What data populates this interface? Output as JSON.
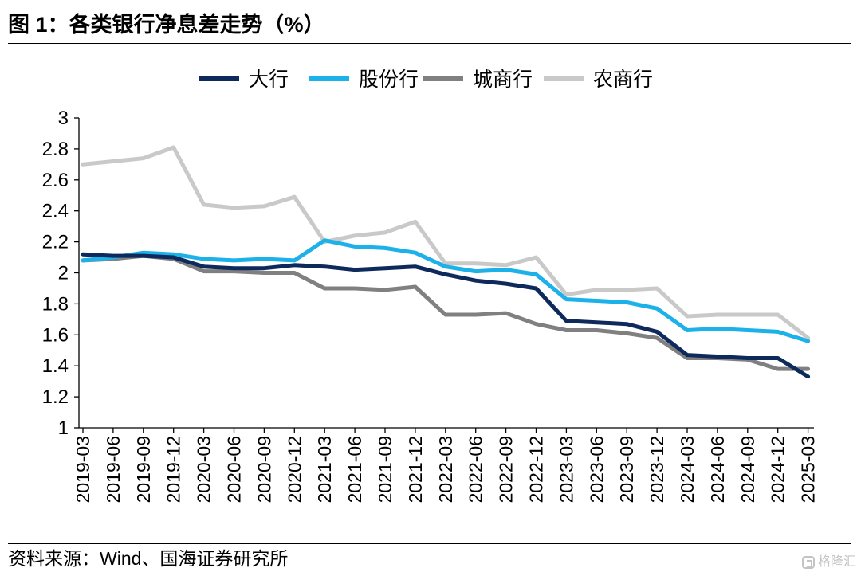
{
  "source": "资料来源：Wind、国海证券研究所",
  "watermark": "格隆汇",
  "chart_data": {
    "type": "line",
    "title": "图 1：各类银行净息差走势（%）",
    "xlabel": "",
    "ylabel": "",
    "legend_position": "top",
    "grid": false,
    "ylim": [
      1,
      3
    ],
    "y_ticks": [
      3,
      2.8,
      2.6,
      2.4,
      2.2,
      2,
      1.8,
      1.6,
      1.4,
      1.2,
      1
    ],
    "y_tick_labels": [
      "3",
      "2.8",
      "2.6",
      "2.4",
      "2.2",
      "2",
      "1.8",
      "1.6",
      "1.4",
      "1.2",
      "1"
    ],
    "x": [
      "2019-03",
      "2019-06",
      "2019-09",
      "2019-12",
      "2020-03",
      "2020-06",
      "2020-09",
      "2020-12",
      "2021-03",
      "2021-06",
      "2021-09",
      "2021-12",
      "2022-03",
      "2022-06",
      "2022-09",
      "2022-12",
      "2023-03",
      "2023-06",
      "2023-09",
      "2023-12",
      "2024-03",
      "2024-06",
      "2024-09",
      "2024-12",
      "2025-03"
    ],
    "series": [
      {
        "name": "大行",
        "color": "#0e2a5c",
        "values": [
          2.12,
          2.11,
          2.11,
          2.1,
          2.04,
          2.03,
          2.03,
          2.05,
          2.04,
          2.02,
          2.03,
          2.04,
          1.99,
          1.95,
          1.93,
          1.9,
          1.69,
          1.68,
          1.67,
          1.62,
          1.47,
          1.46,
          1.45,
          1.45,
          1.33
        ]
      },
      {
        "name": "股份行",
        "color": "#1db1e9",
        "values": [
          2.08,
          2.1,
          2.13,
          2.12,
          2.09,
          2.08,
          2.09,
          2.08,
          2.21,
          2.17,
          2.16,
          2.13,
          2.04,
          2.01,
          2.02,
          1.99,
          1.83,
          1.82,
          1.81,
          1.77,
          1.63,
          1.64,
          1.63,
          1.62,
          1.56
        ]
      },
      {
        "name": "城商行",
        "color": "#808080",
        "values": [
          2.08,
          2.09,
          2.11,
          2.09,
          2.01,
          2.01,
          2.0,
          2.0,
          1.9,
          1.9,
          1.89,
          1.91,
          1.73,
          1.73,
          1.74,
          1.67,
          1.63,
          1.63,
          1.61,
          1.58,
          1.45,
          1.45,
          1.44,
          1.38,
          1.38
        ]
      },
      {
        "name": "农商行",
        "color": "#c9c9c9",
        "values": [
          2.7,
          2.72,
          2.74,
          2.81,
          2.44,
          2.42,
          2.43,
          2.49,
          2.2,
          2.24,
          2.26,
          2.33,
          2.06,
          2.06,
          2.05,
          2.1,
          1.86,
          1.89,
          1.89,
          1.9,
          1.72,
          1.73,
          1.73,
          1.73,
          1.58
        ]
      }
    ]
  }
}
